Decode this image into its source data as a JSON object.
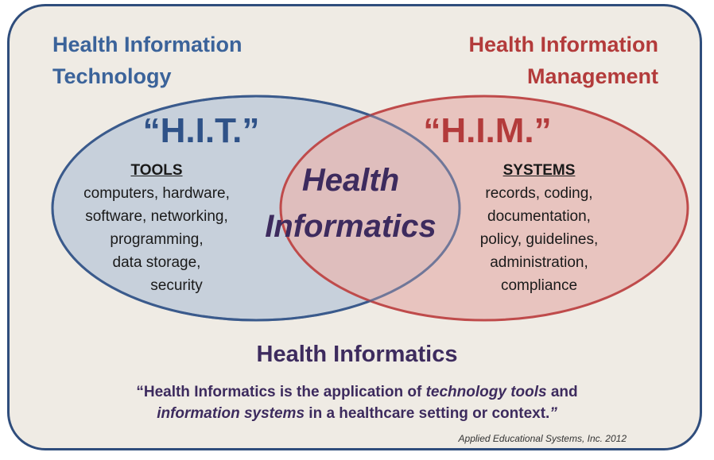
{
  "left_heading": [
    "Health Information",
    "Technology"
  ],
  "right_heading": [
    "Health Information",
    "Management"
  ],
  "left_circle": {
    "abbr": "“H.I.T.”",
    "list_title": "TOOLS",
    "items": [
      "computers, hardware,",
      "software, networking,",
      "programming,",
      "data storage,",
      "security"
    ]
  },
  "right_circle": {
    "abbr": "“H.I.M.”",
    "list_title": "SYSTEMS",
    "items": [
      "records, coding,",
      "documentation,",
      "policy, guidelines,",
      "administration,",
      "compliance"
    ]
  },
  "intersection": [
    "Health",
    "Informatics"
  ],
  "definition": {
    "title": "Health Informatics",
    "line1_prefix": "“Health Informatics is the application of ",
    "line1_em": "technology tools",
    "line1_suffix": " and",
    "line2_em1": "information systems",
    "line2_mid": " in a healthcare setting or context.",
    "line2_end": "”"
  },
  "credit": "Applied Educational Systems, Inc. 2012",
  "colors": {
    "hit_blue": "#3b639a",
    "him_red": "#b33b3b",
    "center_purple": "#3d2b5e",
    "frame_border": "#2f4d7c",
    "frame_bg": "#efebe4"
  }
}
